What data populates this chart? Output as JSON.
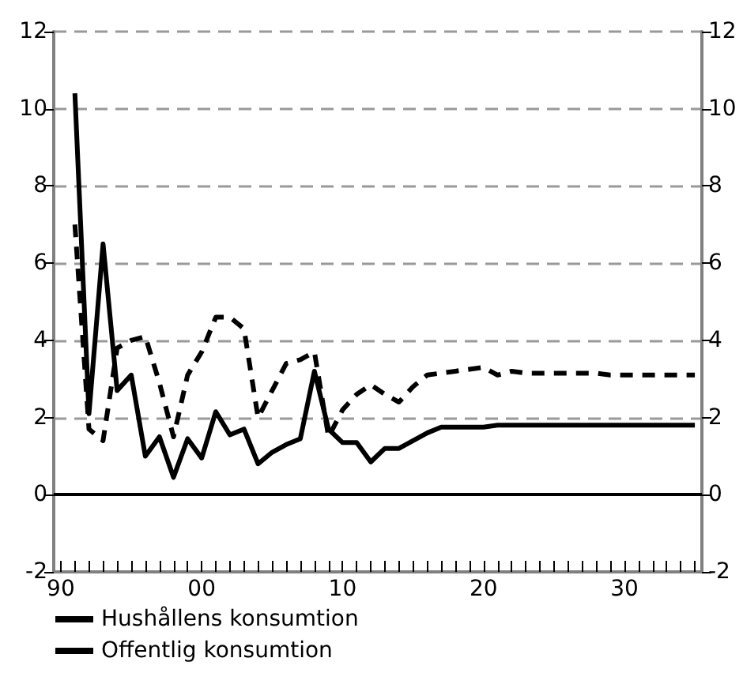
{
  "chart_data": {
    "type": "line",
    "x": [
      1991,
      1992,
      1993,
      1994,
      1995,
      1996,
      1997,
      1998,
      1999,
      2000,
      2001,
      2002,
      2003,
      2004,
      2005,
      2006,
      2007,
      2008,
      2009,
      2010,
      2011,
      2012,
      2013,
      2014,
      2015,
      2016,
      2017,
      2018,
      2019,
      2020,
      2021,
      2022,
      2023,
      2024,
      2025,
      2026,
      2027,
      2028,
      2029,
      2030,
      2031,
      2032,
      2033,
      2034,
      2035
    ],
    "series": [
      {
        "name": "Hushållens konsumtion",
        "color": "#000000",
        "line_style": "solid",
        "values": [
          10.4,
          2.1,
          6.5,
          2.7,
          3.1,
          1.0,
          1.5,
          0.45,
          1.45,
          0.95,
          2.15,
          1.55,
          1.7,
          0.8,
          1.1,
          1.3,
          1.45,
          3.2,
          1.7,
          1.35,
          1.35,
          0.85,
          1.2,
          1.2,
          1.4,
          1.6,
          1.75,
          1.75,
          1.75,
          1.75,
          1.8,
          1.8,
          1.8,
          1.8,
          1.8,
          1.8,
          1.8,
          1.8,
          1.8,
          1.8,
          1.8,
          1.8,
          1.8,
          1.8,
          1.8
        ]
      },
      {
        "name": "Offentlig konsumtion",
        "color": "#000000",
        "line_style": "dashed",
        "values": [
          7.0,
          1.7,
          1.4,
          3.8,
          4.0,
          4.1,
          2.9,
          1.5,
          3.1,
          3.7,
          4.6,
          4.6,
          4.3,
          2.0,
          2.7,
          3.4,
          3.5,
          3.7,
          1.5,
          2.2,
          2.6,
          2.85,
          2.6,
          2.4,
          2.8,
          3.1,
          3.15,
          3.2,
          3.25,
          3.3,
          3.1,
          3.2,
          3.15,
          3.15,
          3.15,
          3.15,
          3.15,
          3.15,
          3.1,
          3.1,
          3.1,
          3.1,
          3.1,
          3.1,
          3.1
        ]
      }
    ],
    "xlim": [
      1989.5,
      2035.5
    ],
    "xticks": [
      {
        "value": 1990,
        "label": "90"
      },
      {
        "value": 1991,
        "label": null
      },
      {
        "value": 1992,
        "label": null
      },
      {
        "value": 1993,
        "label": null
      },
      {
        "value": 1994,
        "label": null
      },
      {
        "value": 1995,
        "label": null
      },
      {
        "value": 1996,
        "label": null
      },
      {
        "value": 1997,
        "label": null
      },
      {
        "value": 1998,
        "label": null
      },
      {
        "value": 1999,
        "label": null
      },
      {
        "value": 2000,
        "label": "00"
      },
      {
        "value": 2001,
        "label": null
      },
      {
        "value": 2002,
        "label": null
      },
      {
        "value": 2003,
        "label": null
      },
      {
        "value": 2004,
        "label": null
      },
      {
        "value": 2005,
        "label": null
      },
      {
        "value": 2006,
        "label": null
      },
      {
        "value": 2007,
        "label": null
      },
      {
        "value": 2008,
        "label": null
      },
      {
        "value": 2009,
        "label": null
      },
      {
        "value": 2010,
        "label": "10"
      },
      {
        "value": 2011,
        "label": null
      },
      {
        "value": 2012,
        "label": null
      },
      {
        "value": 2013,
        "label": null
      },
      {
        "value": 2014,
        "label": null
      },
      {
        "value": 2015,
        "label": null
      },
      {
        "value": 2016,
        "label": null
      },
      {
        "value": 2017,
        "label": null
      },
      {
        "value": 2018,
        "label": null
      },
      {
        "value": 2019,
        "label": null
      },
      {
        "value": 2020,
        "label": "20"
      },
      {
        "value": 2021,
        "label": null
      },
      {
        "value": 2022,
        "label": null
      },
      {
        "value": 2023,
        "label": null
      },
      {
        "value": 2024,
        "label": null
      },
      {
        "value": 2025,
        "label": null
      },
      {
        "value": 2026,
        "label": null
      },
      {
        "value": 2027,
        "label": null
      },
      {
        "value": 2028,
        "label": null
      },
      {
        "value": 2029,
        "label": null
      },
      {
        "value": 2030,
        "label": "30"
      },
      {
        "value": 2031,
        "label": null
      },
      {
        "value": 2032,
        "label": null
      },
      {
        "value": 2033,
        "label": null
      },
      {
        "value": 2034,
        "label": null
      },
      {
        "value": 2035,
        "label": null
      }
    ],
    "ylim": [
      -2,
      12
    ],
    "yticks": [
      -2,
      0,
      2,
      4,
      6,
      8,
      10,
      12
    ],
    "y2lim": [
      -2,
      12
    ],
    "y2ticks": [
      -2,
      0,
      2,
      4,
      6,
      8,
      10,
      12
    ],
    "ref_lines": [
      {
        "axis": "y",
        "value": 0,
        "color": "#000000",
        "line_style": "solid"
      }
    ],
    "grid": "y",
    "legend": "bottom left",
    "marker": "none"
  }
}
